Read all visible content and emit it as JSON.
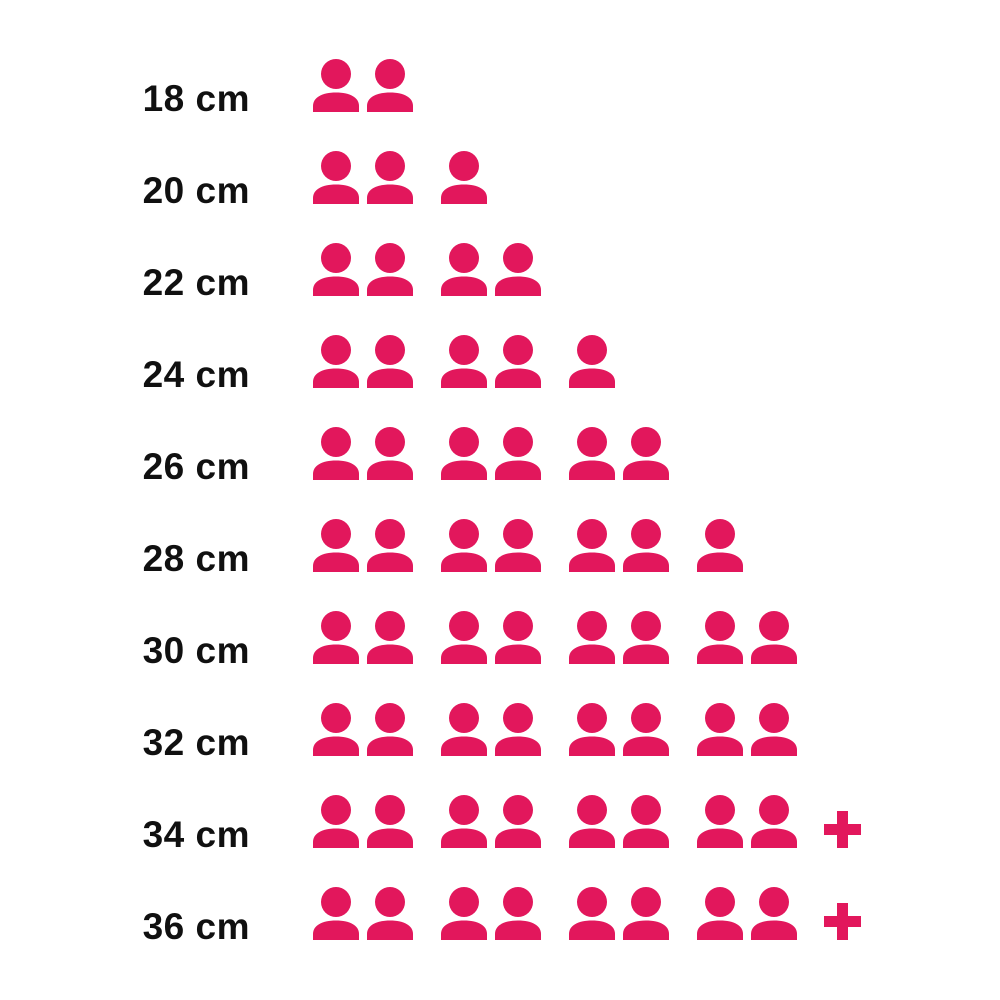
{
  "page": {
    "background": "#FFFFFF"
  },
  "colors": {
    "icon": "#E2175C",
    "label": "#101010"
  },
  "icons": {
    "unit": "person-icon",
    "overflow": "plus-icon"
  },
  "chart_data": {
    "type": "bar",
    "style": "pictogram",
    "title": "",
    "xlabel": "",
    "ylabel": "",
    "grid": false,
    "legend": null,
    "unit_icon": "person",
    "group_size": 2,
    "icon_color": "#E2175C",
    "categories": [
      "18 cm",
      "20 cm",
      "22 cm",
      "24 cm",
      "26 cm",
      "28 cm",
      "30 cm",
      "32 cm",
      "34 cm",
      "36 cm"
    ],
    "values": [
      2,
      3,
      4,
      5,
      6,
      7,
      8,
      8,
      8,
      8
    ],
    "values_display": [
      "2",
      "3",
      "4",
      "5",
      "6",
      "7",
      "8",
      "8",
      "8+",
      "8+"
    ],
    "overflow_plus": [
      false,
      false,
      false,
      false,
      false,
      false,
      false,
      false,
      true,
      true
    ]
  }
}
